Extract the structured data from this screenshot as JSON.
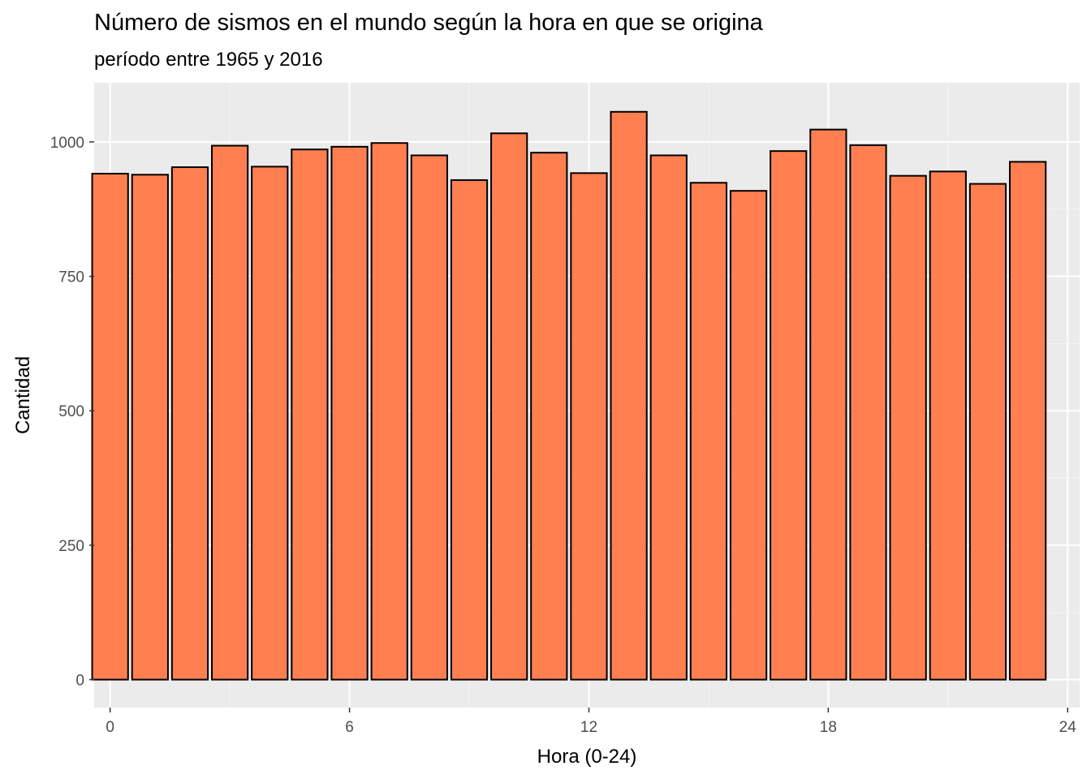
{
  "chart_data": {
    "type": "bar",
    "title": "Número de sismos en el mundo según la hora en que se origina",
    "subtitle": "período entre 1965 y 2016",
    "xlabel": "Hora (0-24)",
    "ylabel": "Cantidad",
    "x": [
      0,
      1,
      2,
      3,
      4,
      5,
      6,
      7,
      8,
      9,
      10,
      11,
      12,
      13,
      14,
      15,
      16,
      17,
      18,
      19,
      20,
      21,
      22,
      23
    ],
    "values": [
      941,
      939,
      953,
      993,
      954,
      986,
      991,
      998,
      975,
      929,
      1016,
      980,
      942,
      1056,
      975,
      924,
      909,
      983,
      1023,
      994,
      937,
      945,
      922,
      963
    ],
    "xticks": [
      0,
      6,
      12,
      18,
      24
    ],
    "yticks": [
      0,
      250,
      500,
      750,
      1000
    ],
    "xlim": [
      -0.4,
      24.3
    ],
    "ylim": [
      -52,
      1110
    ],
    "grid": true,
    "legend": "none",
    "colors": {
      "bar_fill": "#ff7f50",
      "bar_stroke": "#000000",
      "panel_background": "#ebebeb",
      "grid_major": "#ffffff",
      "grid_minor": "#f5f5f5"
    }
  }
}
